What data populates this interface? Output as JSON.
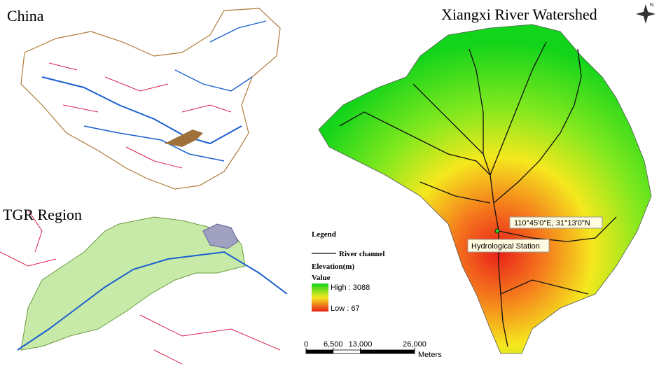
{
  "panels": {
    "china": {
      "title": "China"
    },
    "tgr": {
      "title": "TGR Region"
    },
    "watershed": {
      "title": "Xiangxi River Watershed",
      "north_arrow": "N",
      "station": {
        "coordinates": "110°45'0\"E, 31°13'0\"N",
        "label": "Hydrological Station"
      },
      "legend": {
        "title": "Legend",
        "river": "River channel",
        "elevation_title": "Elevation(m)",
        "value_title": "Value",
        "high": "High : 3088",
        "low": "Low : 67"
      },
      "scale_bar": {
        "ticks": [
          {
            "value": 0,
            "label": "0"
          },
          {
            "value": 6500,
            "label": "6,500"
          },
          {
            "value": 13000,
            "label": "13,000"
          },
          {
            "value": 26000,
            "label": "26,000"
          }
        ],
        "unit": "Meters"
      }
    }
  }
}
